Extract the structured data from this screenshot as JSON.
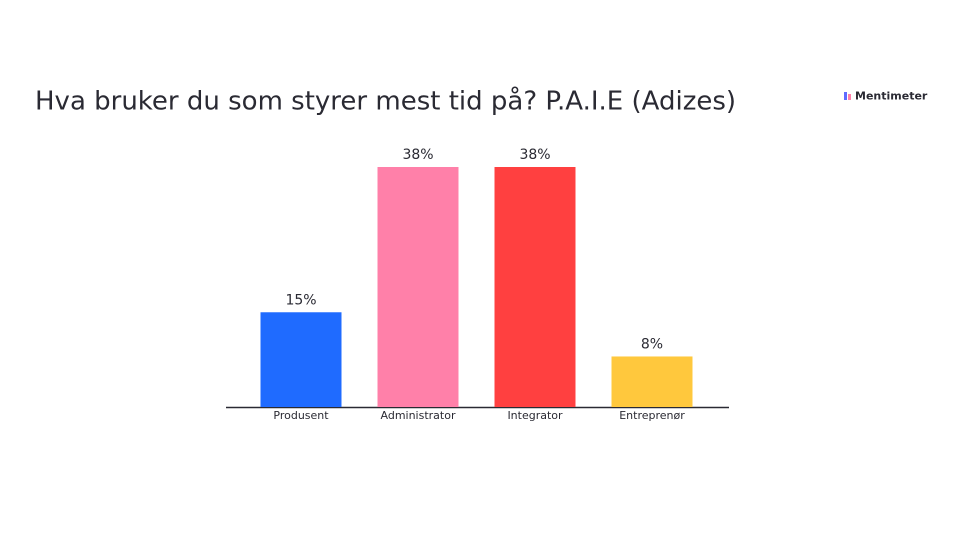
{
  "brand": "Mentimeter",
  "chart_data": {
    "type": "bar",
    "title": "Hva bruker du som styrer mest tid på? P.A.I.E (Adizes)",
    "categories": [
      "Produsent",
      "Administrator",
      "Integrator",
      "Entreprenør"
    ],
    "values": [
      15,
      38,
      38,
      8
    ],
    "value_labels": [
      "15%",
      "38%",
      "38%",
      "8%"
    ],
    "colors": [
      "#1f6bff",
      "#ff80a9",
      "#ff4040",
      "#ffc83d"
    ]
  }
}
